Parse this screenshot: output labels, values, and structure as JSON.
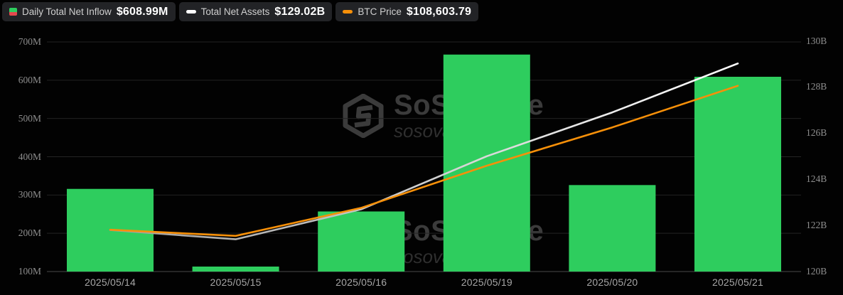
{
  "legend": {
    "items": [
      {
        "label": "Daily Total Net Inflow",
        "value": "$608.99M",
        "icon": "split-square-icon",
        "icon_colors": {
          "positive": "#2ECD5E",
          "negative": "#E5484D"
        }
      },
      {
        "label": "Total Net Assets",
        "value": "$129.02B",
        "icon": "white-dash-icon",
        "icon_colors": {
          "line": "#FFFFFF"
        }
      },
      {
        "label": "BTC Price",
        "value": "$108,603.79",
        "icon": "orange-dash-icon",
        "icon_colors": {
          "line": "#F79009"
        }
      }
    ]
  },
  "watermark": {
    "brand": "SoSoValue",
    "handle": "sosovalue",
    "logo": "sosovalue-cube-logo-icon"
  },
  "chart_data": {
    "type": "bar",
    "subtype": "bar + line combo, dark theme, horizontal gridlines, legend top-left",
    "categories": [
      "2025/05/14",
      "2025/05/15",
      "2025/05/16",
      "2025/05/19",
      "2025/05/20",
      "2025/05/21"
    ],
    "series": [
      {
        "name": "Daily Total Net Inflow",
        "type": "bar",
        "axis": "left",
        "unit": "USD (M)",
        "color": "#2ECD5E",
        "values": [
          316,
          113,
          257,
          667,
          326,
          608.99
        ]
      },
      {
        "name": "Total Net Assets",
        "type": "line",
        "axis": "right",
        "unit": "USD (B)",
        "color": "#FFFFFF",
        "values": [
          121.8,
          121.4,
          122.7,
          125.0,
          126.9,
          129.02
        ]
      },
      {
        "name": "BTC Price",
        "type": "line",
        "axis": "hidden",
        "unit": "USD",
        "color": "#F79009",
        "values": [
          104130,
          103940,
          104810,
          106120,
          107310,
          108603.79
        ]
      }
    ],
    "left_axis": {
      "tick_labels": [
        "700M",
        "600M",
        "500M",
        "400M",
        "300M",
        "200M",
        "100M"
      ],
      "tick_values": [
        700,
        600,
        500,
        400,
        300,
        200,
        100
      ],
      "range": [
        100,
        700
      ]
    },
    "right_axis": {
      "tick_labels": [
        "130B",
        "128B",
        "126B",
        "124B",
        "122B",
        "120B"
      ],
      "tick_values": [
        130,
        128,
        126,
        124,
        122,
        120
      ],
      "range": [
        120,
        130
      ]
    },
    "btc_axis_estimated_range": [
      102830,
      110000
    ],
    "grid": true,
    "legend_position": "top-left"
  }
}
